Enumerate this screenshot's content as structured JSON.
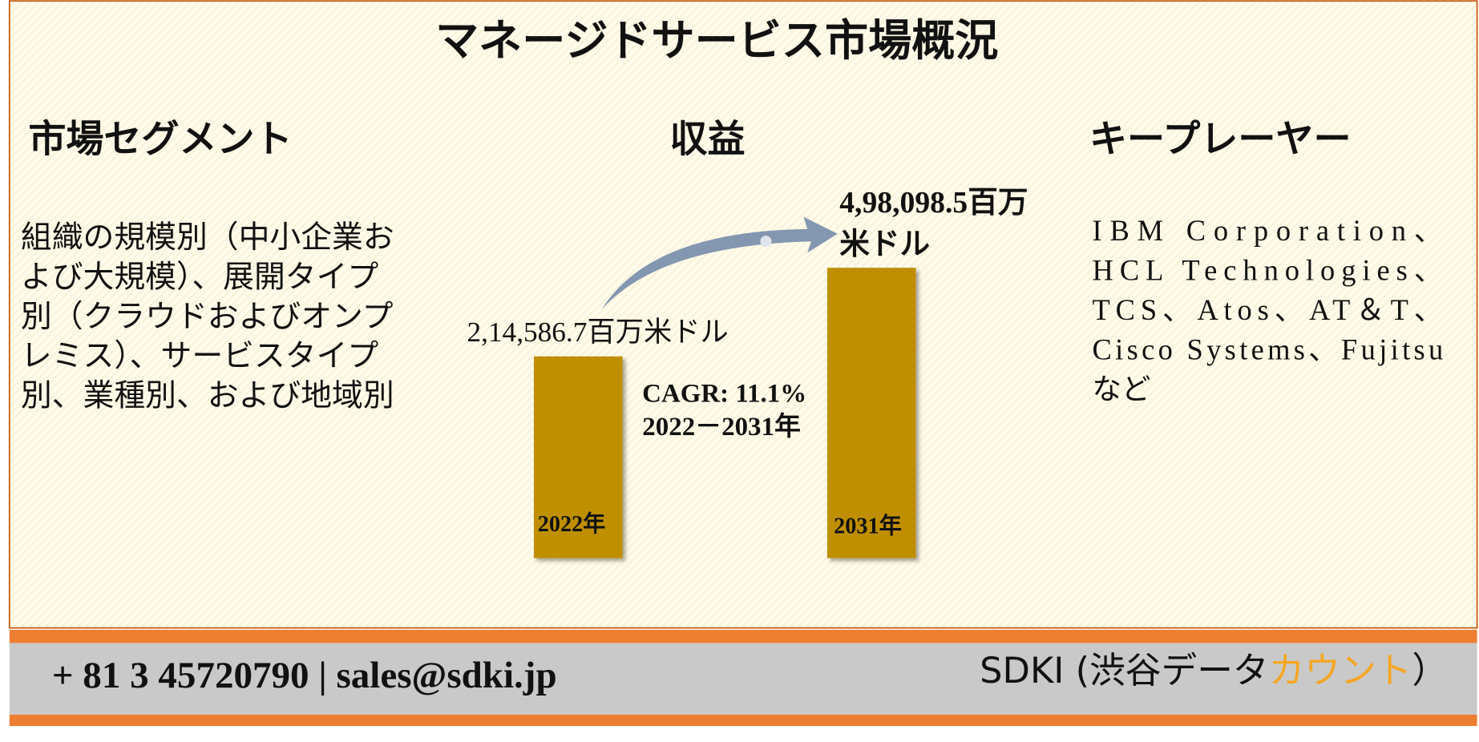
{
  "header": {
    "title": "マネージドサービス市場概況"
  },
  "segments": {
    "heading": "市場セグメント",
    "lines": [
      "組織の規模別（中小企業お",
      "よび大規模）、展開タイプ",
      "別（クラウドおよびオンプ",
      "レミス）、サービスタイプ",
      "別、業種別、および地域別"
    ]
  },
  "revenue": {
    "heading": "収益",
    "start": {
      "label": "2,14,586.7百万米ドル",
      "year": "2022年"
    },
    "end": {
      "label_lines": [
        "4,98,098.5百万",
        "米ドル"
      ],
      "year": "2031年"
    },
    "cagr": [
      "CAGR: 11.1%",
      "2022－2031年"
    ]
  },
  "players": {
    "heading": "キープレーヤー",
    "lines": [
      "IBM Corporation、",
      "HCL Technologies、",
      "TCS、Atos、AT＆T、",
      "Cisco Systems、Fujitsu",
      "など"
    ]
  },
  "footer": {
    "contact": "+ 81 3 45720790 | sales@sdki.jp",
    "brand": [
      "SDKI (渋谷データ",
      "カウント",
      "）"
    ]
  }
}
